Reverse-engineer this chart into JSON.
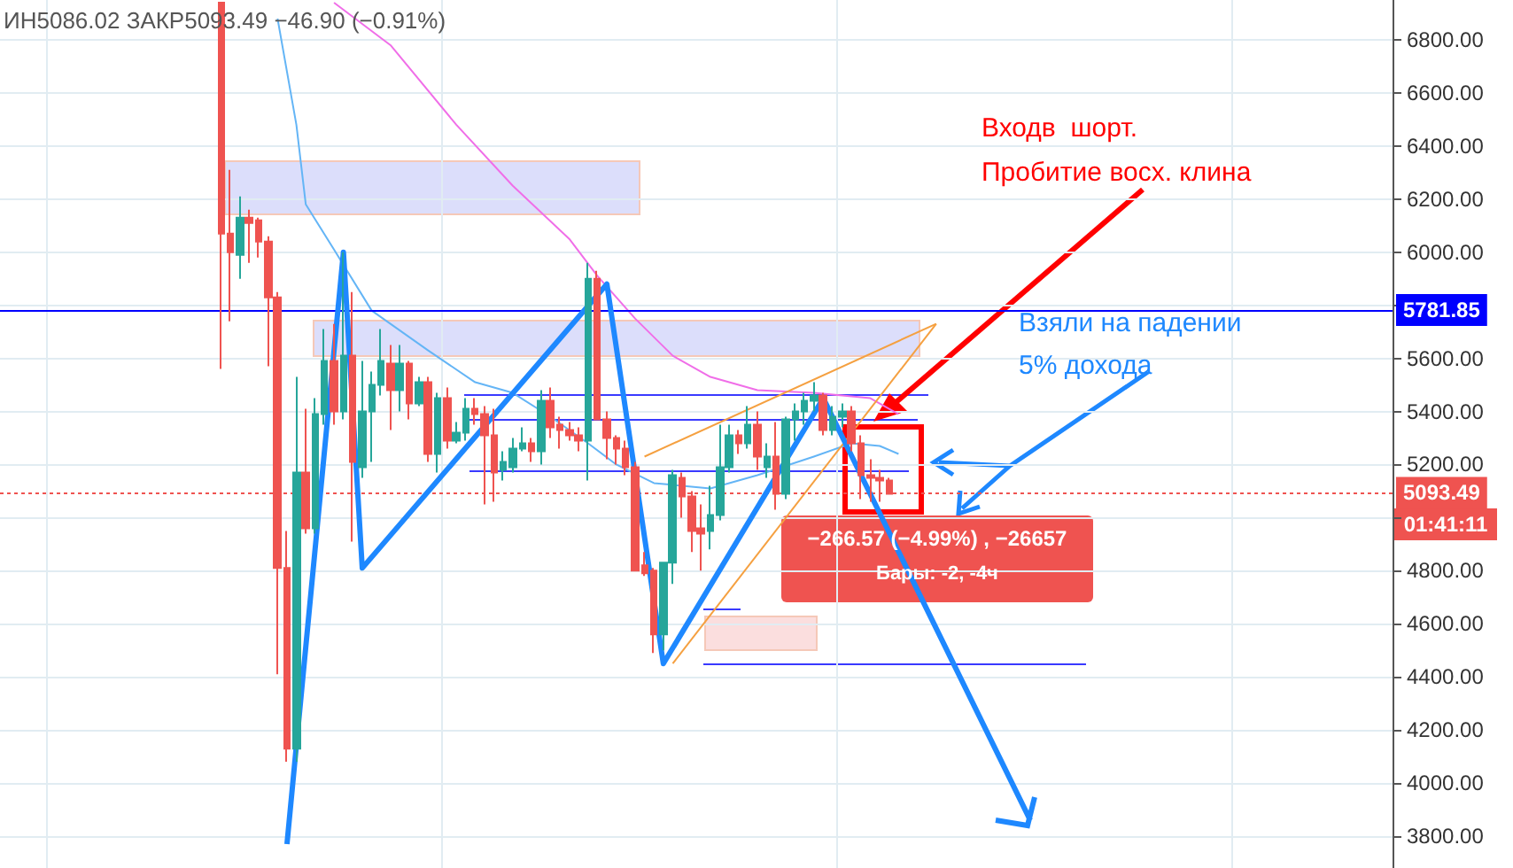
{
  "chart_data": {
    "type": "candlestick",
    "categories": [
      null,
      null,
      null,
      null,
      null,
      null,
      null,
      null,
      null,
      null,
      null,
      null,
      null,
      null,
      null,
      null,
      null,
      null,
      null,
      null,
      null,
      null,
      null,
      null,
      null,
      null,
      null,
      null,
      null,
      null,
      null,
      null,
      null,
      null,
      null,
      null,
      null,
      null,
      null,
      null,
      null,
      null,
      null,
      null,
      null,
      null,
      null,
      null,
      null,
      null,
      null,
      null,
      null,
      null,
      null,
      null,
      null,
      null,
      null,
      null,
      null,
      null,
      null,
      null,
      null,
      null,
      null,
      null,
      null,
      null,
      null,
      null,
      null,
      null,
      null,
      null,
      null,
      null,
      null,
      null,
      null,
      null,
      null,
      null,
      null,
      null,
      null,
      null,
      null,
      null,
      null,
      null,
      null,
      null,
      null,
      null,
      null,
      null,
      null,
      null,
      null,
      null,
      null,
      null,
      null,
      null,
      null,
      null,
      null,
      null,
      null,
      null,
      null,
      null,
      null,
      null,
      null,
      null,
      null,
      null,
      null,
      null,
      null,
      null,
      null,
      null,
      null,
      null,
      null,
      null,
      null,
      null,
      null,
      null,
      null,
      null,
      null,
      null,
      null,
      null,
      null,
      null,
      null,
      null,
      null,
      null,
      null,
      null
    ],
    "ohlc": [
      null,
      null,
      null,
      null,
      null,
      null,
      null,
      null,
      null,
      null,
      null,
      null,
      null,
      null,
      null,
      null,
      null,
      null,
      null,
      null,
      null,
      null,
      null,
      [
        6940,
        6940,
        5560,
        6070
      ],
      [
        6070,
        6310,
        5740,
        6000
      ],
      [
        5990,
        6210,
        5900,
        6130
      ],
      [
        6130,
        6160,
        5960,
        6110
      ],
      [
        6120,
        6130,
        5980,
        6040
      ],
      [
        6040,
        6060,
        5570,
        5830
      ],
      [
        5830,
        5850,
        4410,
        4810
      ],
      [
        4810,
        4950,
        4080,
        4130
      ],
      [
        4130,
        5530,
        4080,
        5170
      ],
      [
        5170,
        5410,
        4940,
        4960
      ],
      [
        4960,
        5450,
        4940,
        5390
      ],
      [
        5390,
        5710,
        5350,
        5590
      ],
      [
        5590,
        5730,
        5350,
        5400
      ],
      [
        5400,
        6000,
        5370,
        5610
      ],
      [
        5610,
        5850,
        4910,
        5210
      ],
      [
        5190,
        5590,
        5150,
        5400
      ],
      [
        5400,
        5550,
        5210,
        5500
      ],
      [
        5500,
        5710,
        5460,
        5590
      ],
      [
        5580,
        5650,
        5330,
        5480
      ],
      [
        5480,
        5650,
        5400,
        5580
      ],
      [
        5580,
        5590,
        5370,
        5430
      ],
      [
        5430,
        5530,
        5420,
        5510
      ],
      [
        5510,
        5530,
        5210,
        5240
      ],
      [
        5240,
        5470,
        5170,
        5450
      ],
      [
        5450,
        5490,
        5260,
        5290
      ],
      [
        5290,
        5360,
        5280,
        5320
      ],
      [
        5320,
        5450,
        5290,
        5410
      ],
      [
        5410,
        5450,
        5350,
        5390
      ],
      [
        5390,
        5420,
        5050,
        5310
      ],
      [
        5310,
        5410,
        5060,
        5170
      ],
      [
        5180,
        5250,
        5140,
        5210
      ],
      [
        5190,
        5300,
        5170,
        5260
      ],
      [
        5260,
        5340,
        5250,
        5280
      ],
      [
        5280,
        5300,
        5210,
        5250
      ],
      [
        5250,
        5480,
        5200,
        5440
      ],
      [
        5440,
        5490,
        5300,
        5340
      ],
      [
        5350,
        5380,
        5260,
        5330
      ],
      [
        5330,
        5360,
        5290,
        5310
      ],
      [
        5310,
        5340,
        5250,
        5290
      ],
      [
        5290,
        5960,
        5140,
        5900
      ],
      [
        5900,
        5930,
        5370,
        5370
      ],
      [
        5370,
        5400,
        5220,
        5300
      ],
      [
        5300,
        5310,
        5200,
        5260
      ],
      [
        5260,
        5290,
        5160,
        5190
      ],
      [
        5190,
        5210,
        4800,
        4800
      ],
      [
        4820,
        4870,
        4780,
        4790
      ],
      [
        4800,
        4810,
        4490,
        4560
      ],
      [
        4560,
        4830,
        4500,
        4830
      ],
      [
        4830,
        5180,
        4750,
        5160
      ],
      [
        5150,
        5170,
        5000,
        5080
      ],
      [
        5080,
        5100,
        4870,
        4950
      ],
      [
        4960,
        5050,
        4800,
        4940
      ],
      [
        4950,
        5120,
        4880,
        5010
      ],
      [
        5010,
        5350,
        4990,
        5190
      ],
      [
        5190,
        5350,
        5170,
        5310
      ],
      [
        5310,
        5330,
        5240,
        5280
      ],
      [
        5280,
        5420,
        5260,
        5350
      ],
      [
        5350,
        5400,
        5180,
        5230
      ],
      [
        5190,
        5280,
        5150,
        5230
      ],
      [
        5230,
        5360,
        5030,
        5090
      ],
      [
        5090,
        5380,
        5070,
        5370
      ],
      [
        5370,
        5430,
        5290,
        5400
      ],
      [
        5400,
        5470,
        5350,
        5440
      ],
      [
        5440,
        5510,
        5400,
        5460
      ],
      [
        5460,
        5470,
        5310,
        5330
      ],
      [
        5330,
        5420,
        5310,
        5380
      ],
      [
        5380,
        5430,
        5340,
        5400
      ],
      [
        5400,
        5420,
        5250,
        5280
      ],
      [
        5280,
        5310,
        5070,
        5160
      ],
      [
        5160,
        5220,
        5060,
        5150
      ],
      [
        5150,
        5180,
        5060,
        5140
      ],
      [
        5140,
        5150,
        5090,
        5090
      ],
      null,
      null,
      null,
      null,
      null,
      null,
      null,
      null,
      null,
      null,
      null,
      null,
      null,
      null,
      null,
      null,
      null,
      null,
      null,
      null,
      null,
      null,
      null,
      null,
      null,
      null,
      null,
      null,
      null,
      null,
      null,
      null,
      null,
      null,
      null,
      null,
      null,
      null,
      null,
      null,
      null,
      null,
      null,
      null,
      null,
      null,
      null,
      null,
      null,
      null,
      null,
      null,
      null
    ],
    "series": [
      {
        "type": "line",
        "color": "#64b5f6",
        "values": [
          null,
          null,
          null,
          null,
          null,
          null,
          null,
          null,
          null,
          null,
          null,
          null,
          null,
          null,
          null,
          null,
          null,
          null,
          null,
          null,
          null,
          null,
          null,
          null,
          null,
          null,
          null,
          null,
          null,
          6880,
          null,
          6480,
          6180,
          null,
          null,
          6010,
          null,
          null,
          null,
          5780,
          null,
          null,
          null,
          null,
          null,
          5630,
          null,
          null,
          null,
          null,
          5510,
          null,
          null,
          null,
          5470,
          null,
          null,
          null,
          5380,
          null,
          null,
          null,
          5280,
          null,
          null,
          5200,
          null,
          null,
          null,
          5130,
          null,
          null,
          null,
          null,
          null,
          5110,
          null,
          null,
          null,
          null,
          5160,
          null,
          null,
          null,
          null,
          null,
          5230,
          null,
          null,
          null,
          5280,
          null,
          null,
          5270,
          null,
          5240,
          null,
          null,
          null,
          null,
          null,
          null,
          null,
          null,
          null,
          null,
          null,
          null,
          null,
          null,
          null,
          null,
          null,
          null,
          null,
          null,
          null,
          null,
          null,
          null,
          null,
          null,
          null,
          null,
          null,
          null,
          null,
          null,
          null,
          null,
          null,
          null,
          null,
          null,
          null,
          null,
          null,
          null,
          null,
          null,
          null,
          null,
          null,
          null,
          null,
          null,
          null,
          null
        ]
      },
      {
        "type": "line",
        "color": "#f06ee8",
        "values": [
          null,
          null,
          null,
          null,
          null,
          null,
          null,
          null,
          null,
          null,
          null,
          null,
          null,
          null,
          null,
          null,
          null,
          null,
          null,
          null,
          null,
          null,
          null,
          null,
          null,
          null,
          null,
          null,
          null,
          null,
          null,
          null,
          null,
          null,
          null,
          6940,
          null,
          null,
          null,
          null,
          null,
          6780,
          null,
          null,
          null,
          null,
          null,
          null,
          6480,
          null,
          null,
          null,
          null,
          null,
          6250,
          null,
          null,
          null,
          null,
          null,
          6050,
          null,
          null,
          5910,
          null,
          null,
          null,
          5750,
          null,
          null,
          null,
          5610,
          null,
          null,
          null,
          5530,
          null,
          null,
          null,
          null,
          5480,
          null,
          null,
          null,
          null,
          null,
          5470,
          null,
          null,
          null,
          null,
          null,
          5450,
          null,
          null,
          5390,
          null,
          null,
          null,
          null,
          null,
          null,
          null,
          null,
          null,
          null,
          null,
          null,
          null,
          null,
          null,
          null,
          null,
          null,
          null,
          null,
          null,
          null,
          null,
          null,
          null,
          null,
          null,
          null,
          null,
          null,
          null,
          null,
          null,
          null,
          null,
          null,
          null,
          null,
          null,
          null,
          null,
          null,
          null,
          null,
          null,
          null,
          null,
          null,
          null,
          null,
          null,
          null
        ]
      },
      {
        "type": "line",
        "color": "#1e88ff",
        "values": [
          null,
          null,
          null,
          null,
          null,
          null,
          null,
          null,
          null,
          null,
          null,
          null,
          null,
          null,
          null,
          null,
          null,
          null,
          null,
          null,
          null,
          null,
          null,
          null,
          null,
          null,
          null,
          null,
          null,
          null,
          3770,
          null,
          null,
          null,
          null,
          null,
          6000,
          null,
          4810,
          null,
          null,
          null,
          null,
          null,
          null,
          null,
          null,
          null,
          null,
          null,
          null,
          null,
          null,
          null,
          null,
          null,
          null,
          null,
          null,
          null,
          null,
          null,
          null,
          null,
          5880,
          null,
          null,
          null,
          null,
          null,
          4450,
          null,
          null,
          null,
          null,
          null,
          null,
          null,
          null,
          null,
          null,
          null,
          null,
          null,
          null,
          null,
          null,
          5450,
          null,
          null,
          null,
          null,
          null,
          null,
          null,
          null,
          null,
          null,
          null,
          null,
          null,
          null,
          null,
          null,
          null,
          null,
          null,
          null,
          null,
          3860,
          null,
          null,
          null,
          null,
          null,
          null,
          null,
          null,
          null,
          null,
          null,
          null,
          null,
          null,
          null,
          null,
          null,
          null,
          null,
          null,
          null,
          null,
          null,
          null,
          null,
          null,
          null,
          null,
          null,
          null,
          null,
          null,
          null,
          null,
          null,
          null,
          null,
          null
        ]
      },
      {
        "type": "line",
        "color": "#f5a040",
        "values": [
          null,
          null,
          null,
          null,
          null,
          null,
          null,
          null,
          null,
          null,
          null,
          null,
          null,
          null,
          null,
          null,
          null,
          null,
          null,
          null,
          null,
          null,
          null,
          null,
          null,
          null,
          null,
          null,
          null,
          null,
          null,
          null,
          null,
          null,
          null,
          null,
          null,
          null,
          null,
          null,
          null,
          null,
          null,
          null,
          null,
          null,
          null,
          null,
          null,
          null,
          null,
          null,
          null,
          null,
          null,
          null,
          null,
          null,
          null,
          null,
          null,
          null,
          null,
          null,
          null,
          null,
          null,
          null,
          5230,
          null,
          null,
          null,
          null,
          null,
          null,
          null,
          null,
          null,
          null,
          null,
          null,
          null,
          null,
          null,
          null,
          null,
          null,
          null,
          null,
          null,
          null,
          null,
          null,
          null,
          null,
          null,
          null,
          null,
          null,
          5730,
          null,
          null,
          null,
          null,
          null,
          null,
          null,
          null,
          null,
          null,
          null,
          null,
          null,
          null,
          null,
          null,
          null,
          null,
          null,
          null,
          null,
          null,
          null,
          null,
          null,
          null,
          null,
          null,
          null,
          null,
          null,
          null,
          null,
          null,
          null,
          null,
          null,
          null,
          null,
          null,
          null,
          null,
          null,
          null,
          null,
          null,
          null,
          null
        ]
      },
      {
        "type": "line",
        "color": "#f5a040",
        "values": [
          null,
          null,
          null,
          null,
          null,
          null,
          null,
          null,
          null,
          null,
          null,
          null,
          null,
          null,
          null,
          null,
          null,
          null,
          null,
          null,
          null,
          null,
          null,
          null,
          null,
          null,
          null,
          null,
          null,
          null,
          null,
          null,
          null,
          null,
          null,
          null,
          null,
          null,
          null,
          null,
          null,
          null,
          null,
          null,
          null,
          null,
          null,
          null,
          null,
          null,
          null,
          null,
          null,
          null,
          null,
          null,
          null,
          null,
          null,
          null,
          null,
          null,
          null,
          null,
          null,
          null,
          null,
          null,
          null,
          null,
          null,
          4450,
          null,
          null,
          null,
          null,
          null,
          null,
          null,
          null,
          null,
          null,
          null,
          null,
          null,
          null,
          null,
          null,
          null,
          null,
          null,
          null,
          null,
          null,
          null,
          null,
          null,
          null,
          null,
          5730,
          null,
          null,
          null,
          null,
          null,
          null,
          null,
          null,
          null,
          null,
          null,
          null,
          null,
          null,
          null,
          null,
          null,
          null,
          null,
          null,
          null,
          null,
          null,
          null,
          null,
          null,
          null,
          null,
          null,
          null,
          null,
          null,
          null,
          null,
          null,
          null,
          null,
          null,
          null,
          null,
          null,
          null,
          null,
          null,
          null,
          null,
          null,
          null
        ]
      }
    ],
    "ylim": [
      3680,
      6950
    ],
    "yticks": [
      {
        "value": 3800,
        "label": "3800.00"
      },
      {
        "value": 4000,
        "label": "4000.00"
      },
      {
        "value": 4200,
        "label": "4200.00"
      },
      {
        "value": 4400,
        "label": "4400.00"
      },
      {
        "value": 4600,
        "label": "4600.00"
      },
      {
        "value": 4800,
        "label": "4800.00"
      },
      {
        "value": 5000,
        "label": null
      },
      {
        "value": 5200,
        "label": "5200.00"
      },
      {
        "value": 5400,
        "label": "5400.00"
      },
      {
        "value": 5600,
        "label": "5600.00"
      },
      {
        "value": 5800,
        "label": null
      },
      {
        "value": 6000,
        "label": "6000.00"
      },
      {
        "value": 6200,
        "label": "6200.00"
      },
      {
        "value": 6400,
        "label": "6400.00"
      },
      {
        "value": 6600,
        "label": "6600.00"
      },
      {
        "value": 6800,
        "label": "6800.00"
      }
    ],
    "grid": true,
    "tick_labels": "y",
    "ref_lines": [
      {
        "axis": "y",
        "value": 5781.85,
        "label": "5781.85",
        "color": "#0000ff",
        "line_style": "solid"
      },
      {
        "axis": "y",
        "value": 5093.49,
        "label": "5093.49",
        "color": "#ef5350",
        "line_style": "dotted"
      }
    ],
    "annotations": [
      "ИН5086.02 ЗАКР5093.49 −46.90 (−0.91%)",
      "Входв  шорт.\nПробитие восх. клина",
      "Взяли на падении\n5% дохода",
      "−266.57 (−4.99%) , −26657",
      "Бары: -2, -4ч",
      "01:41:11"
    ]
  }
}
